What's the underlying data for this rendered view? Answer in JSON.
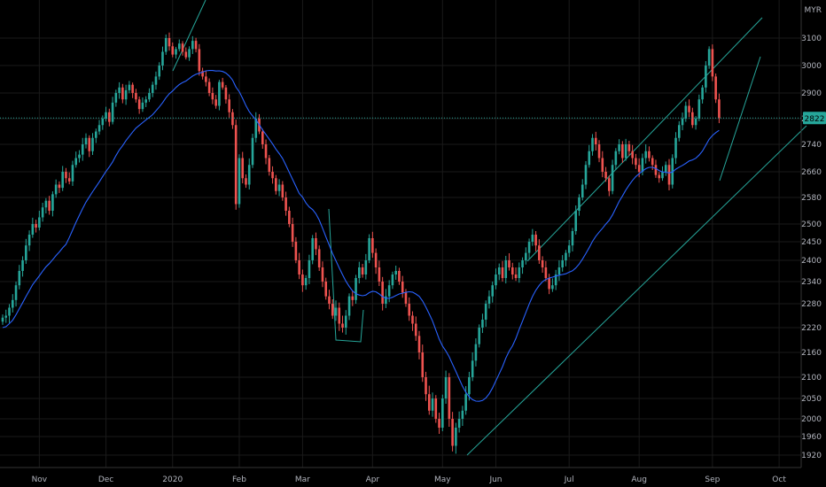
{
  "chart_data": {
    "type": "candlestick",
    "currency": "MYR",
    "last_price": "2822",
    "y_ticks": [
      1920,
      1960,
      2000,
      2050,
      2100,
      2160,
      2220,
      2280,
      2340,
      2400,
      2450,
      2500,
      2580,
      2660,
      2740,
      2820,
      2900,
      3000,
      3100
    ],
    "x_ticks": [
      {
        "label": "Nov",
        "index": 11
      },
      {
        "label": "Dec",
        "index": 31
      },
      {
        "label": "2020",
        "index": 51
      },
      {
        "label": "Feb",
        "index": 71
      },
      {
        "label": "Mar",
        "index": 90
      },
      {
        "label": "Apr",
        "index": 111
      },
      {
        "label": "May",
        "index": 132
      },
      {
        "label": "Jun",
        "index": 148
      },
      {
        "label": "Jul",
        "index": 170
      },
      {
        "label": "Aug",
        "index": 191
      },
      {
        "label": "Sep",
        "index": 213
      },
      {
        "label": "Oct",
        "index": 233
      }
    ],
    "close": [
      2245,
      2250,
      2270,
      2290,
      2330,
      2370,
      2400,
      2440,
      2470,
      2500,
      2490,
      2520,
      2550,
      2570,
      2540,
      2590,
      2620,
      2610,
      2660,
      2640,
      2630,
      2680,
      2700,
      2710,
      2740,
      2760,
      2720,
      2760,
      2780,
      2800,
      2820,
      2840,
      2810,
      2870,
      2900,
      2920,
      2880,
      2910,
      2930,
      2900,
      2880,
      2850,
      2870,
      2880,
      2900,
      2930,
      2960,
      3000,
      3050,
      3100,
      3070,
      3040,
      3060,
      3080,
      3050,
      3030,
      3060,
      3090,
      3060,
      2980,
      2960,
      2940,
      2900,
      2880,
      2860,
      2940,
      2920,
      2880,
      2840,
      2800,
      2560,
      2700,
      2640,
      2620,
      2680,
      2760,
      2820,
      2780,
      2740,
      2700,
      2660,
      2640,
      2600,
      2620,
      2580,
      2540,
      2500,
      2450,
      2400,
      2360,
      2330,
      2350,
      2400,
      2460,
      2430,
      2380,
      2340,
      2300,
      2280,
      2250,
      2270,
      2230,
      2220,
      2250,
      2300,
      2290,
      2350,
      2380,
      2360,
      2400,
      2460,
      2420,
      2380,
      2340,
      2280,
      2300,
      2330,
      2360,
      2370,
      2340,
      2310,
      2280,
      2250,
      2230,
      2200,
      2160,
      2100,
      2060,
      2020,
      2050,
      2000,
      1980,
      2050,
      2100,
      2000,
      1940,
      1980,
      2000,
      2020,
      2060,
      2100,
      2140,
      2180,
      2220,
      2240,
      2280,
      2300,
      2330,
      2360,
      2380,
      2350,
      2400,
      2380,
      2360,
      2350,
      2380,
      2400,
      2420,
      2450,
      2470,
      2440,
      2400,
      2380,
      2350,
      2320,
      2330,
      2360,
      2380,
      2400,
      2420,
      2440,
      2480,
      2540,
      2580,
      2620,
      2680,
      2720,
      2760,
      2740,
      2700,
      2660,
      2640,
      2600,
      2680,
      2720,
      2740,
      2700,
      2740,
      2720,
      2700,
      2680,
      2660,
      2700,
      2720,
      2700,
      2680,
      2650,
      2640,
      2660,
      2680,
      2620,
      2700,
      2760,
      2800,
      2820,
      2860,
      2840,
      2800,
      2820,
      2880,
      2920,
      3000,
      3060,
      2960,
      2880,
      2822
    ]
  },
  "overlays": {
    "ma_line_color": "#2962ff",
    "channel_color": "#26a69a"
  }
}
